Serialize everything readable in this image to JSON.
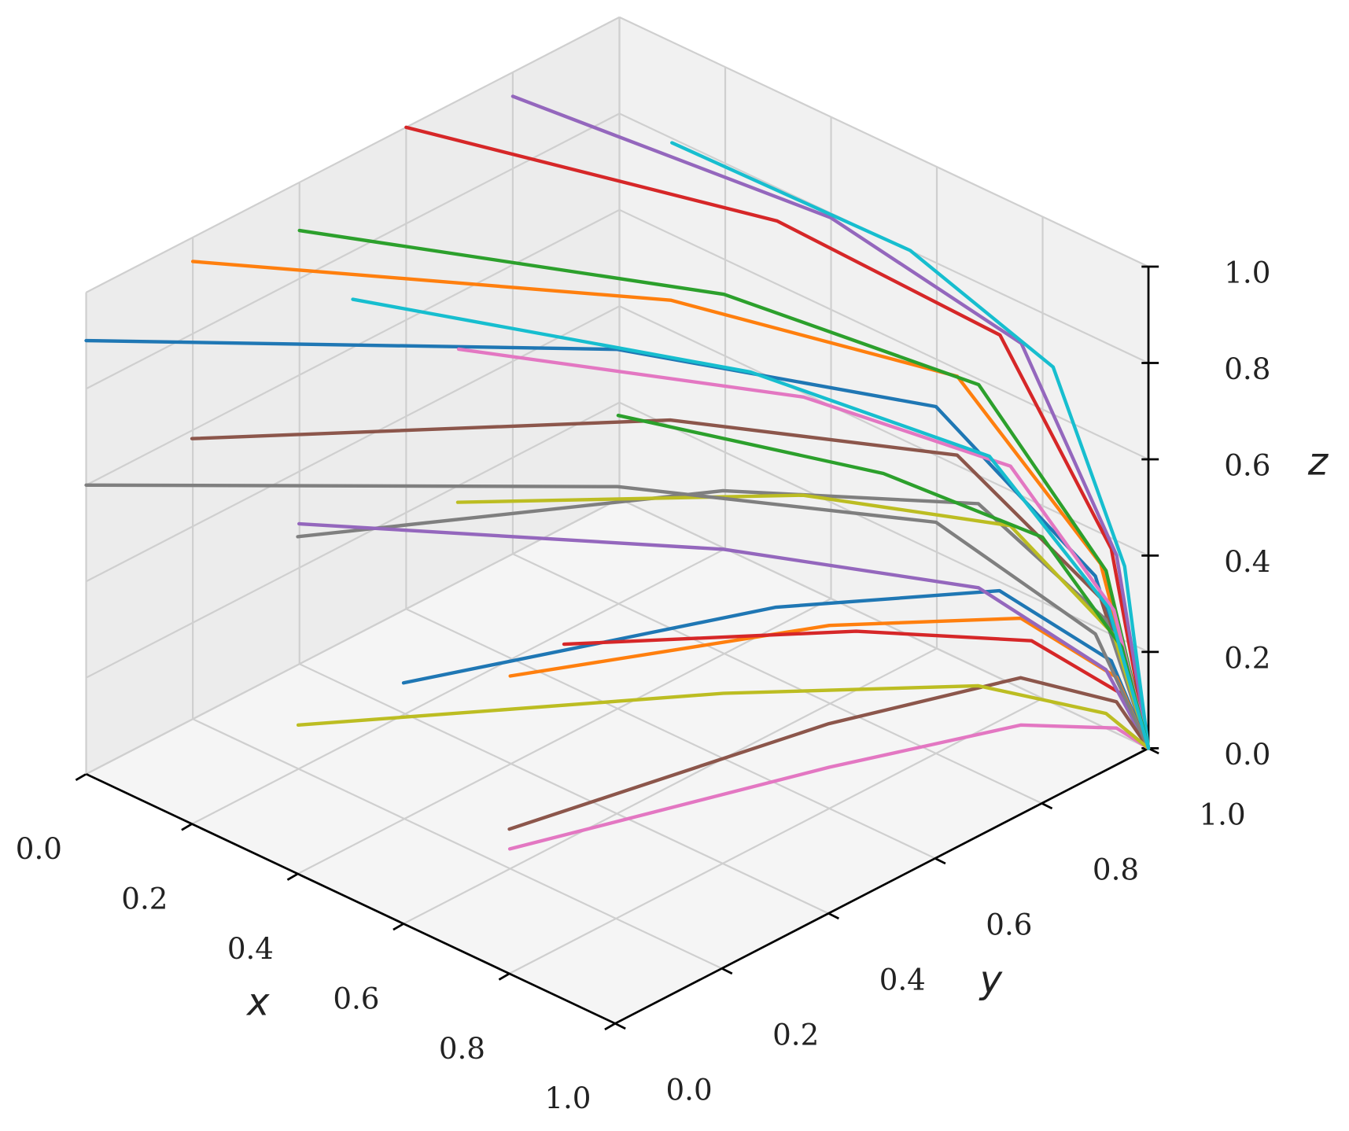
{
  "chart_data": {
    "type": "line3d",
    "xlabel": "x",
    "ylabel": "y",
    "zlabel": "z",
    "xlim": [
      0,
      1
    ],
    "ylim": [
      0,
      1
    ],
    "zlim": [
      0,
      1
    ],
    "xticks": [
      {
        "value": 0,
        "label": "0.0"
      },
      0.2,
      0.4,
      0.6,
      0.8,
      {
        "value": 1,
        "label": "1.0"
      }
    ],
    "yticks": [
      {
        "value": 0,
        "label": "0.0"
      },
      0.2,
      0.4,
      0.6,
      0.8,
      {
        "value": 1,
        "label": "1.0"
      }
    ],
    "zticks": [
      {
        "value": 0,
        "label": "0.0"
      },
      0.2,
      0.4,
      0.6,
      0.8,
      {
        "value": 1,
        "label": "1.0"
      }
    ],
    "grid": true,
    "series": [
      {
        "color": "#1f77b4",
        "x": [
          0,
          0.5,
          0.8,
          0.95,
          1
        ],
        "y": [
          0,
          0.5,
          0.8,
          0.95,
          1
        ],
        "z": [
          0.9,
          0.855,
          0.72,
          0.36,
          0
        ]
      },
      {
        "color": "#ff7f0e",
        "x": [
          0,
          0.5,
          0.8,
          0.95,
          1
        ],
        "y": [
          0.2,
          0.6,
          0.84,
          0.96,
          1
        ],
        "z": [
          0.95,
          0.9,
          0.76,
          0.38,
          0
        ]
      },
      {
        "color": "#2ca02c",
        "x": [
          0,
          0.5,
          0.8,
          0.95,
          1
        ],
        "y": [
          0.4,
          0.7,
          0.88,
          0.97,
          1
        ],
        "z": [
          0.9,
          0.855,
          0.72,
          0.36,
          0
        ]
      },
      {
        "color": "#d62728",
        "x": [
          0,
          0.5,
          0.8,
          0.95,
          1
        ],
        "y": [
          0.6,
          0.8,
          0.92,
          0.98,
          1
        ],
        "z": [
          1,
          0.95,
          0.8,
          0.4,
          0
        ]
      },
      {
        "color": "#9467bd",
        "x": [
          0,
          0.5,
          0.8,
          0.95,
          1
        ],
        "y": [
          0.8,
          0.9,
          0.96,
          0.99,
          1
        ],
        "z": [
          0.95,
          0.9,
          0.76,
          0.38,
          0
        ]
      },
      {
        "color": "#8c564b",
        "x": [
          0.2,
          0.6,
          0.84,
          0.96,
          1
        ],
        "y": [
          0,
          0.5,
          0.8,
          0.95,
          1
        ],
        "z": [
          0.8,
          0.76,
          0.64,
          0.32,
          0
        ]
      },
      {
        "color": "#e377c2",
        "x": [
          0.2,
          0.6,
          0.84,
          0.96,
          1
        ],
        "y": [
          0.5,
          0.75,
          0.9,
          0.975,
          1
        ],
        "z": [
          0.7,
          0.665,
          0.56,
          0.28,
          0
        ]
      },
      {
        "color": "#7f7f7f",
        "x": [
          0.4,
          0.7,
          0.88,
          0.97,
          1
        ],
        "y": [
          0,
          0.5,
          0.8,
          0.95,
          1
        ],
        "z": [
          0.7,
          0.665,
          0.56,
          0.28,
          0
        ]
      },
      {
        "color": "#bcbd22",
        "x": [
          0.4,
          0.7,
          0.88,
          0.97,
          1
        ],
        "y": [
          0.3,
          0.65,
          0.86,
          0.965,
          1
        ],
        "z": [
          0.6,
          0.57,
          0.48,
          0.24,
          0
        ]
      },
      {
        "color": "#17becf",
        "x": [
          0.2,
          0.6,
          0.84,
          0.96,
          1
        ],
        "y": [
          0.9,
          0.95,
          0.98,
          0.995,
          1
        ],
        "z": [
          0.9,
          0.855,
          0.72,
          0.36,
          0
        ]
      },
      {
        "color": "#1f77b4",
        "x": [
          0.6,
          0.8,
          0.92,
          0.98,
          1
        ],
        "y": [
          0,
          0.5,
          0.8,
          0.95,
          1
        ],
        "z": [
          0.5,
          0.475,
          0.4,
          0.2,
          0
        ]
      },
      {
        "color": "#ff7f0e",
        "x": [
          0.6,
          0.8,
          0.92,
          0.98,
          1
        ],
        "y": [
          0.2,
          0.6,
          0.84,
          0.96,
          1
        ],
        "z": [
          0.4,
          0.38,
          0.32,
          0.16,
          0
        ]
      },
      {
        "color": "#2ca02c",
        "x": [
          0.3,
          0.65,
          0.86,
          0.965,
          1
        ],
        "y": [
          0.7,
          0.85,
          0.94,
          0.985,
          1
        ],
        "z": [
          0.5,
          0.475,
          0.4,
          0.2,
          0
        ]
      },
      {
        "color": "#d62728",
        "x": [
          0.5,
          0.75,
          0.9,
          0.975,
          1
        ],
        "y": [
          0.4,
          0.7,
          0.88,
          0.97,
          1
        ],
        "z": [
          0.3,
          0.285,
          0.24,
          0.12,
          0
        ]
      },
      {
        "color": "#9467bd",
        "x": [
          0.1,
          0.55,
          0.82,
          0.955,
          1
        ],
        "y": [
          0.3,
          0.65,
          0.86,
          0.965,
          1
        ],
        "z": [
          0.4,
          0.38,
          0.32,
          0.16,
          0
        ]
      },
      {
        "color": "#8c564b",
        "x": [
          0.8,
          0.9,
          0.96,
          0.99,
          1
        ],
        "y": [
          0,
          0.5,
          0.8,
          0.95,
          1
        ],
        "z": [
          0.3,
          0.285,
          0.24,
          0.12,
          0
        ]
      },
      {
        "color": "#e377c2",
        "x": [
          0.7,
          0.85,
          0.94,
          0.985,
          1
        ],
        "y": [
          0.1,
          0.55,
          0.82,
          0.955,
          1
        ],
        "z": [
          0.15,
          0.14,
          0.12,
          0.06,
          0
        ]
      },
      {
        "color": "#7f7f7f",
        "x": [
          0,
          0.5,
          0.8,
          0.95,
          1
        ],
        "y": [
          0,
          0.5,
          0.8,
          0.95,
          1
        ],
        "z": [
          0.6,
          0.57,
          0.48,
          0.24,
          0
        ]
      },
      {
        "color": "#bcbd22",
        "x": [
          0.3,
          0.65,
          0.86,
          0.965,
          1
        ],
        "y": [
          0.1,
          0.55,
          0.82,
          0.955,
          1
        ],
        "z": [
          0.2,
          0.19,
          0.16,
          0.08,
          0
        ]
      },
      {
        "color": "#17becf",
        "x": [
          0,
          0.5,
          0.8,
          0.95,
          1
        ],
        "y": [
          0.5,
          0.75,
          0.9,
          0.975,
          1
        ],
        "z": [
          0.7,
          0.665,
          0.56,
          0.28,
          0
        ]
      }
    ]
  }
}
